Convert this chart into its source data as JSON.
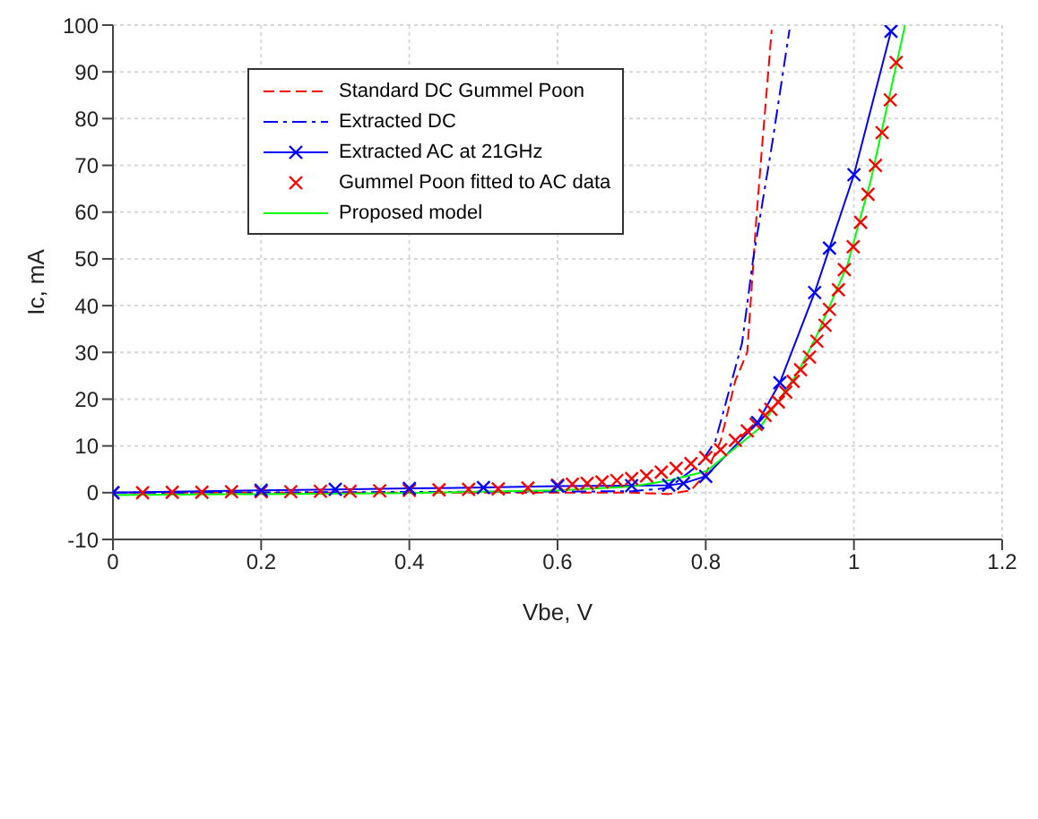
{
  "chart_data": {
    "type": "line",
    "xlabel": "Vbe, V",
    "ylabel": "Ic, mA",
    "xlim": [
      0,
      1.2
    ],
    "ylim": [
      -10,
      100
    ],
    "xticks": [
      0,
      0.2,
      0.4,
      0.6,
      0.8,
      1,
      1.2
    ],
    "yticks": [
      -10,
      0,
      10,
      20,
      30,
      40,
      50,
      60,
      70,
      80,
      90,
      100
    ],
    "grid": true,
    "legend": "top left",
    "series": [
      {
        "name": "Standard DC Gummel Poon",
        "color": "#ff0000",
        "line_style": "dashed",
        "marker": "none",
        "x": [
          0,
          0.3,
          0.5,
          0.7,
          0.75,
          0.78,
          0.8,
          0.82,
          0.84,
          0.856,
          0.868,
          0.876,
          0.889
        ],
        "values": [
          0,
          0,
          0,
          0,
          -0.3,
          0.5,
          4,
          11,
          24,
          30,
          58,
          74,
          99
        ]
      },
      {
        "name": "Extracted DC",
        "color": "#0000ff",
        "line_style": "dashdot",
        "marker": "none",
        "x": [
          0,
          0.3,
          0.5,
          0.7,
          0.75,
          0.793,
          0.813,
          0.849,
          0.864,
          0.89,
          0.913
        ],
        "values": [
          0,
          0.1,
          0.2,
          0.3,
          1,
          6.3,
          11,
          32,
          50,
          75,
          99
        ]
      },
      {
        "name": "Extracted AC at 21GHz",
        "color": "#0000ff",
        "line_style": "solid",
        "marker": "cross",
        "x": [
          0,
          0.2,
          0.3,
          0.4,
          0.5,
          0.6,
          0.7,
          0.75,
          0.77,
          0.8,
          0.87,
          0.9,
          0.947,
          0.967,
          1,
          1.05
        ],
        "values": [
          0,
          0.5,
          0.7,
          0.9,
          1.1,
          1.4,
          1.5,
          1.6,
          2,
          3.5,
          15,
          23.5,
          42.8,
          52.3,
          68,
          98.7
        ]
      },
      {
        "name": "Gummel Poon fitted to AC data",
        "type": "scatter",
        "color": "#ff0000",
        "marker": "cross",
        "x": [
          0,
          0.04,
          0.08,
          0.12,
          0.16,
          0.2,
          0.24,
          0.28,
          0.32,
          0.36,
          0.4,
          0.44,
          0.48,
          0.52,
          0.56,
          0.6,
          0.62,
          0.64,
          0.66,
          0.68,
          0.7,
          0.72,
          0.74,
          0.76,
          0.78,
          0.8,
          0.82,
          0.84,
          0.856,
          0.868,
          0.88,
          0.888,
          0.898,
          0.908,
          0.918,
          0.928,
          0.94,
          0.95,
          0.961,
          0.967,
          0.979,
          0.987,
          0.999,
          1.009,
          1.019,
          1.029,
          1.038,
          1.049,
          1.057
        ],
        "values": [
          0,
          0,
          0.1,
          0.1,
          0.2,
          0.2,
          0.2,
          0.3,
          0.3,
          0.4,
          0.5,
          0.6,
          0.7,
          0.8,
          1,
          1.6,
          1.8,
          2,
          2.3,
          2.6,
          3,
          3.6,
          4.4,
          5.2,
          6.2,
          7.5,
          9.2,
          11.2,
          13.2,
          14.6,
          16.5,
          17.8,
          19.4,
          21.5,
          23.8,
          26.3,
          29,
          32.4,
          35.8,
          39.2,
          43.4,
          47.7,
          52.6,
          57.8,
          63.8,
          70,
          77,
          84,
          92
        ]
      },
      {
        "name": "Proposed model",
        "color": "#00ff00",
        "line_style": "solid",
        "marker": "none",
        "x": [
          0,
          0.2,
          0.4,
          0.6,
          0.7,
          0.753,
          0.801,
          0.872,
          0.924,
          0.951,
          0.991,
          1.023,
          1.069
        ],
        "values": [
          -0.5,
          -0.3,
          -0.1,
          0.5,
          1.3,
          2.7,
          4.6,
          13.7,
          25.6,
          34,
          48.6,
          67,
          100
        ]
      }
    ]
  }
}
